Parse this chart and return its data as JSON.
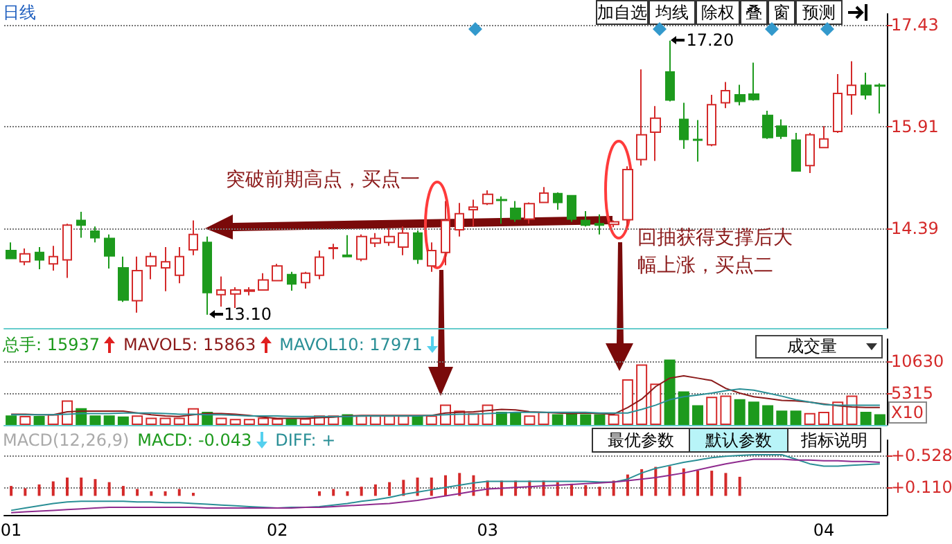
{
  "chart_data": [
    {
      "type": "candlestick",
      "title": "日线",
      "categories": [
        "01",
        null,
        null,
        null,
        null,
        null,
        null,
        null,
        null,
        null,
        null,
        null,
        null,
        null,
        null,
        null,
        null,
        null,
        null,
        "02",
        null,
        null,
        null,
        null,
        null,
        null,
        null,
        null,
        null,
        null,
        null,
        null,
        null,
        null,
        "03",
        null,
        null,
        null,
        null,
        null,
        null,
        null,
        null,
        null,
        null,
        null,
        null,
        null,
        null,
        null,
        null,
        null,
        null,
        null,
        null,
        null,
        null,
        null,
        "04",
        null,
        null,
        null,
        null
      ],
      "ohlc": [
        [
          14.06,
          14.18,
          13.93,
          13.94
        ],
        [
          13.89,
          14.09,
          13.84,
          14.01
        ],
        [
          14.03,
          14.11,
          13.78,
          13.92
        ],
        [
          13.86,
          14.13,
          13.76,
          13.97
        ],
        [
          13.92,
          14.46,
          13.65,
          14.44
        ],
        [
          14.51,
          14.64,
          14.25,
          14.44
        ],
        [
          14.35,
          14.42,
          14.18,
          14.25
        ],
        [
          14.24,
          14.3,
          13.79,
          13.98
        ],
        [
          13.8,
          13.97,
          13.29,
          13.32
        ],
        [
          13.31,
          13.97,
          13.13,
          13.76
        ],
        [
          13.83,
          14.03,
          13.63,
          13.97
        ],
        [
          13.8,
          14.11,
          13.45,
          13.89
        ],
        [
          13.69,
          14.11,
          13.57,
          13.97
        ],
        [
          14.07,
          14.51,
          13.99,
          14.3
        ],
        [
          14.18,
          14.27,
          13.1,
          13.43
        ],
        [
          13.4,
          13.67,
          13.22,
          13.47
        ],
        [
          13.41,
          13.51,
          13.2,
          13.47
        ],
        [
          13.45,
          13.51,
          13.39,
          13.47
        ],
        [
          13.47,
          13.72,
          13.46,
          13.62
        ],
        [
          13.61,
          13.86,
          13.6,
          13.83
        ],
        [
          13.7,
          13.74,
          13.46,
          13.56
        ],
        [
          13.58,
          13.74,
          13.49,
          13.72
        ],
        [
          13.69,
          14.06,
          13.63,
          13.96
        ],
        [
          14.09,
          14.16,
          13.93,
          14.1
        ],
        [
          13.99,
          14.29,
          13.97,
          13.97
        ],
        [
          13.93,
          14.3,
          13.9,
          14.27
        ],
        [
          14.17,
          14.32,
          14.11,
          14.24
        ],
        [
          14.18,
          14.39,
          14.13,
          14.27
        ],
        [
          14.11,
          14.42,
          13.99,
          14.32
        ],
        [
          14.32,
          14.36,
          13.86,
          13.93
        ],
        [
          13.83,
          14.18,
          13.74,
          14.06
        ],
        [
          14.03,
          14.8,
          13.84,
          14.51
        ],
        [
          14.37,
          14.77,
          14.27,
          14.61
        ],
        [
          14.67,
          14.82,
          14.42,
          14.71
        ],
        [
          14.76,
          14.96,
          14.74,
          14.9
        ],
        [
          14.82,
          14.87,
          14.46,
          14.81
        ],
        [
          14.69,
          14.8,
          14.49,
          14.53
        ],
        [
          14.53,
          14.78,
          14.46,
          14.76
        ],
        [
          14.78,
          15.01,
          14.77,
          14.92
        ],
        [
          14.91,
          14.93,
          14.67,
          14.78
        ],
        [
          14.88,
          14.89,
          14.49,
          14.53
        ],
        [
          14.51,
          14.65,
          14.42,
          14.44
        ],
        [
          14.46,
          14.6,
          14.3,
          14.44
        ],
        [
          14.45,
          14.51,
          14.41,
          14.49
        ],
        [
          14.52,
          15.32,
          14.42,
          15.27
        ],
        [
          15.42,
          16.77,
          15.33,
          15.79
        ],
        [
          15.83,
          16.22,
          15.4,
          16.04
        ],
        [
          16.73,
          17.2,
          16.29,
          16.31
        ],
        [
          16.02,
          16.27,
          15.58,
          15.72
        ],
        [
          15.72,
          16.01,
          15.39,
          15.71
        ],
        [
          15.64,
          16.39,
          15.62,
          16.24
        ],
        [
          16.27,
          16.58,
          16.19,
          16.45
        ],
        [
          16.39,
          16.54,
          16.23,
          16.29
        ],
        [
          16.4,
          16.87,
          16.3,
          16.32
        ],
        [
          16.08,
          16.15,
          15.73,
          15.75
        ],
        [
          15.92,
          16.02,
          15.73,
          15.77
        ],
        [
          15.71,
          15.82,
          15.24,
          15.25
        ],
        [
          15.33,
          15.82,
          15.22,
          15.79
        ],
        [
          15.6,
          15.92,
          15.59,
          15.73
        ],
        [
          15.84,
          16.7,
          15.82,
          16.41
        ],
        [
          16.39,
          16.89,
          16.09,
          16.53
        ],
        [
          16.53,
          16.72,
          16.32,
          16.39
        ],
        [
          16.53,
          16.56,
          16.11,
          16.52
        ]
      ],
      "colors": [
        "#1d9a1d",
        "#d42a2a",
        "#1d9a1d",
        "#d42a2a",
        "#d42a2a",
        "#1d9a1d",
        "#1d9a1d",
        "#1d9a1d",
        "#1d9a1d",
        "#d42a2a",
        "#d42a2a",
        "#d42a2a",
        "#d42a2a",
        "#d42a2a",
        "#1d9a1d",
        "#d42a2a",
        "#d42a2a",
        "#d42a2a",
        "#d42a2a",
        "#d42a2a",
        "#1d9a1d",
        "#d42a2a",
        "#d42a2a",
        "#d42a2a",
        "#1d9a1d",
        "#d42a2a",
        "#d42a2a",
        "#d42a2a",
        "#d42a2a",
        "#1d9a1d",
        "#d42a2a",
        "#d42a2a",
        "#d42a2a",
        "#d42a2a",
        "#d42a2a",
        "#1d9a1d",
        "#1d9a1d",
        "#d42a2a",
        "#d42a2a",
        "#1d9a1d",
        "#1d9a1d",
        "#1d9a1d",
        "#1d9a1d",
        "#d42a2a",
        "#d42a2a",
        "#d42a2a",
        "#d42a2a",
        "#1d9a1d",
        "#1d9a1d",
        "#1d9a1d",
        "#d42a2a",
        "#d42a2a",
        "#1d9a1d",
        "#1d9a1d",
        "#1d9a1d",
        "#1d9a1d",
        "#1d9a1d",
        "#d42a2a",
        "#d42a2a",
        "#d42a2a",
        "#d42a2a",
        "#1d9a1d",
        "#1d9a1d"
      ],
      "ylim": [
        12.9,
        17.6
      ],
      "yticks": [
        14.39,
        15.91,
        17.43
      ],
      "grid": "y",
      "tick_labels": "y",
      "annotations": [
        "突破前期高点，买点一",
        "回抽获得支撑后大幅上涨，买点二",
        "17.20",
        "13.10",
        "加自选",
        "均线",
        "除权",
        "叠",
        "窗",
        "预测"
      ]
    },
    {
      "type": "bar",
      "title": "成交量",
      "ylabel": "X10",
      "categories": [
        "01",
        null,
        null,
        null,
        null,
        null,
        null,
        null,
        null,
        null,
        null,
        null,
        null,
        null,
        null,
        null,
        null,
        null,
        null,
        "02",
        null,
        null,
        null,
        null,
        null,
        null,
        null,
        null,
        null,
        null,
        null,
        null,
        null,
        null,
        "03",
        null,
        null,
        null,
        null,
        null,
        null,
        null,
        null,
        null,
        null,
        null,
        null,
        null,
        null,
        null,
        null,
        null,
        null,
        null,
        null,
        null,
        null,
        null,
        "04",
        null,
        null,
        null,
        null
      ],
      "series": [
        {
          "values": [
            1600,
            1500,
            1500,
            1800,
            4100,
            2800,
            1600,
            1600,
            1400,
            1600,
            1200,
            1200,
            1200,
            2800,
            2200,
            1200,
            1000,
            1000,
            1200,
            1100,
            1100,
            1100,
            1600,
            1600,
            1800,
            1600,
            1600,
            1600,
            1600,
            1600,
            1600,
            3400,
            2400,
            2000,
            3400,
            2200,
            2200,
            1600,
            2200,
            1800,
            2200,
            1800,
            1800,
            1800,
            7600,
            10100,
            6900,
            10900,
            5600,
            3300,
            4700,
            4900,
            4300,
            3900,
            3300,
            2400,
            2400,
            2000,
            2200,
            3900,
            4900,
            2200,
            1800
          ],
          "colors": [
            "#1d9a1d",
            "#d42a2a",
            "#1d9a1d",
            "#d42a2a",
            "#d42a2a",
            "#1d9a1d",
            "#1d9a1d",
            "#1d9a1d",
            "#1d9a1d",
            "#d42a2a",
            "#d42a2a",
            "#d42a2a",
            "#d42a2a",
            "#d42a2a",
            "#1d9a1d",
            "#d42a2a",
            "#d42a2a",
            "#d42a2a",
            "#d42a2a",
            "#d42a2a",
            "#1d9a1d",
            "#d42a2a",
            "#d42a2a",
            "#d42a2a",
            "#1d9a1d",
            "#d42a2a",
            "#d42a2a",
            "#d42a2a",
            "#d42a2a",
            "#1d9a1d",
            "#d42a2a",
            "#d42a2a",
            "#d42a2a",
            "#d42a2a",
            "#d42a2a",
            "#1d9a1d",
            "#1d9a1d",
            "#d42a2a",
            "#d42a2a",
            "#1d9a1d",
            "#1d9a1d",
            "#1d9a1d",
            "#1d9a1d",
            "#d42a2a",
            "#d42a2a",
            "#d42a2a",
            "#d42a2a",
            "#1d9a1d",
            "#1d9a1d",
            "#1d9a1d",
            "#d42a2a",
            "#d42a2a",
            "#1d9a1d",
            "#1d9a1d",
            "#1d9a1d",
            "#1d9a1d",
            "#1d9a1d",
            "#d42a2a",
            "#d42a2a",
            "#d42a2a",
            "#d42a2a",
            "#1d9a1d",
            "#1d9a1d"
          ]
        },
        {
          "type": "line",
          "color": "#8b1a1a",
          "values": [
            1800,
            1800,
            1700,
            1700,
            2200,
            2300,
            2300,
            2300,
            2300,
            2000,
            1700,
            1500,
            1400,
            1700,
            1900,
            1900,
            1800,
            1600,
            1300,
            1100,
            1100,
            1100,
            1200,
            1300,
            1500,
            1600,
            1600,
            1600,
            1600,
            1600,
            1600,
            2000,
            2100,
            2200,
            2400,
            2600,
            2500,
            2200,
            2100,
            2000,
            1900,
            2000,
            1900,
            1800,
            2900,
            4300,
            6400,
            7800,
            8200,
            7800,
            7400,
            6100,
            5300,
            4700,
            4400,
            4100,
            4000,
            3800,
            3500,
            3200,
            3000,
            2900,
            2900
          ]
        },
        {
          "type": "line",
          "color": "#2a8f96",
          "values": [
            1700,
            1700,
            1700,
            1700,
            1800,
            1900,
            1900,
            1900,
            2000,
            2000,
            2000,
            1900,
            1800,
            1800,
            1700,
            1700,
            1600,
            1500,
            1500,
            1500,
            1400,
            1400,
            1400,
            1400,
            1400,
            1500,
            1500,
            1500,
            1500,
            1500,
            1600,
            1700,
            1800,
            1800,
            1900,
            2000,
            2100,
            2100,
            2100,
            2100,
            2100,
            2100,
            2000,
            2000,
            2000,
            2600,
            3300,
            4200,
            4700,
            5000,
            5300,
            5700,
            6000,
            5800,
            5300,
            4800,
            4200,
            3800,
            3400,
            3300,
            3300,
            3300,
            3300
          ]
        }
      ],
      "ylim": [
        0,
        14300
      ],
      "yticks": [
        5315,
        10630
      ],
      "grid": "y",
      "tick_labels": "y",
      "annotations": [
        "总手: 15937",
        "MAVOL5: 15863",
        "MAVOL10: 17971"
      ]
    },
    {
      "type": "bar",
      "title": "MACD(12,26,9)",
      "categories": [
        "01",
        null,
        null,
        null,
        null,
        null,
        null,
        null,
        null,
        null,
        null,
        null,
        null,
        null,
        null,
        null,
        null,
        null,
        null,
        "02",
        null,
        null,
        null,
        null,
        null,
        null,
        null,
        null,
        null,
        null,
        null,
        null,
        null,
        null,
        "03",
        null,
        null,
        null,
        null,
        null,
        null,
        null,
        null,
        null,
        null,
        null,
        null,
        null,
        null,
        null,
        null,
        null,
        null,
        null,
        null,
        null,
        null,
        null,
        "04",
        null,
        null,
        null,
        null
      ],
      "series": [
        {
          "color": "#d42a2a",
          "values": [
            0.13,
            0.1,
            0.15,
            0.19,
            0.24,
            0.24,
            0.22,
            0.18,
            0.13,
            0.09,
            0.06,
            0.06,
            0.09,
            0.04,
            null,
            null,
            null,
            null,
            null,
            null,
            null,
            null,
            0.06,
            0.09,
            0.06,
            0.12,
            0.15,
            0.18,
            0.21,
            0.24,
            0.24,
            0.27,
            0.3,
            0.27,
            0.2,
            0.2,
            0.2,
            0.2,
            0.2,
            0.18,
            0.16,
            0.14,
            0.12,
            0.2,
            0.28,
            0.35,
            0.38,
            0.39,
            0.36,
            0.33,
            0.33,
            0.3,
            0.25,
            null,
            null,
            null,
            null,
            null,
            null,
            null,
            null,
            null,
            null
          ]
        },
        {
          "type": "line",
          "color": "#2a8f96",
          "values": [
            -0.19,
            -0.16,
            -0.13,
            -0.1,
            -0.08,
            -0.07,
            -0.07,
            -0.07,
            -0.07,
            -0.08,
            -0.08,
            -0.09,
            -0.09,
            -0.1,
            -0.11,
            -0.12,
            -0.13,
            -0.14,
            -0.15,
            -0.16,
            -0.15,
            -0.15,
            -0.14,
            -0.12,
            -0.1,
            -0.07,
            -0.05,
            -0.02,
            0.02,
            0.05,
            0.08,
            0.11,
            0.14,
            0.17,
            0.19,
            0.19,
            0.19,
            0.19,
            0.19,
            0.19,
            0.19,
            0.19,
            0.18,
            0.18,
            0.22,
            0.3,
            0.36,
            0.4,
            0.44,
            0.47,
            0.5,
            0.52,
            0.53,
            0.54,
            0.54,
            0.54,
            0.48,
            0.42,
            0.39,
            0.39,
            0.4,
            0.41,
            0.42
          ]
        },
        {
          "type": "line",
          "color": "#8e2a8e",
          "values": [
            -0.22,
            -0.21,
            -0.2,
            -0.19,
            -0.18,
            -0.17,
            -0.16,
            -0.15,
            -0.15,
            -0.15,
            -0.15,
            -0.15,
            -0.15,
            -0.15,
            -0.16,
            -0.16,
            -0.16,
            -0.16,
            -0.16,
            -0.16,
            -0.16,
            -0.15,
            -0.15,
            -0.14,
            -0.13,
            -0.12,
            -0.11,
            -0.1,
            -0.08,
            -0.06,
            -0.03,
            0.0,
            0.03,
            0.06,
            0.09,
            0.1,
            0.11,
            0.12,
            0.13,
            0.14,
            0.15,
            0.16,
            0.17,
            0.18,
            0.2,
            0.22,
            0.24,
            0.27,
            0.3,
            0.34,
            0.38,
            0.42,
            0.45,
            0.48,
            0.48,
            0.48,
            0.47,
            0.47,
            0.46,
            0.46,
            0.45,
            0.45,
            0.44
          ]
        }
      ],
      "ylim": [
        -0.25,
        0.73
      ],
      "yticks": [
        {
          "value": 0.528,
          "label": "+0.528"
        },
        {
          "value": 0.11,
          "label": "+0.110"
        }
      ],
      "grid": "y",
      "annotations": [
        "MACD: -0.043",
        "DIFF: +",
        "最优参数",
        "默认参数",
        "指标说明"
      ]
    }
  ]
}
